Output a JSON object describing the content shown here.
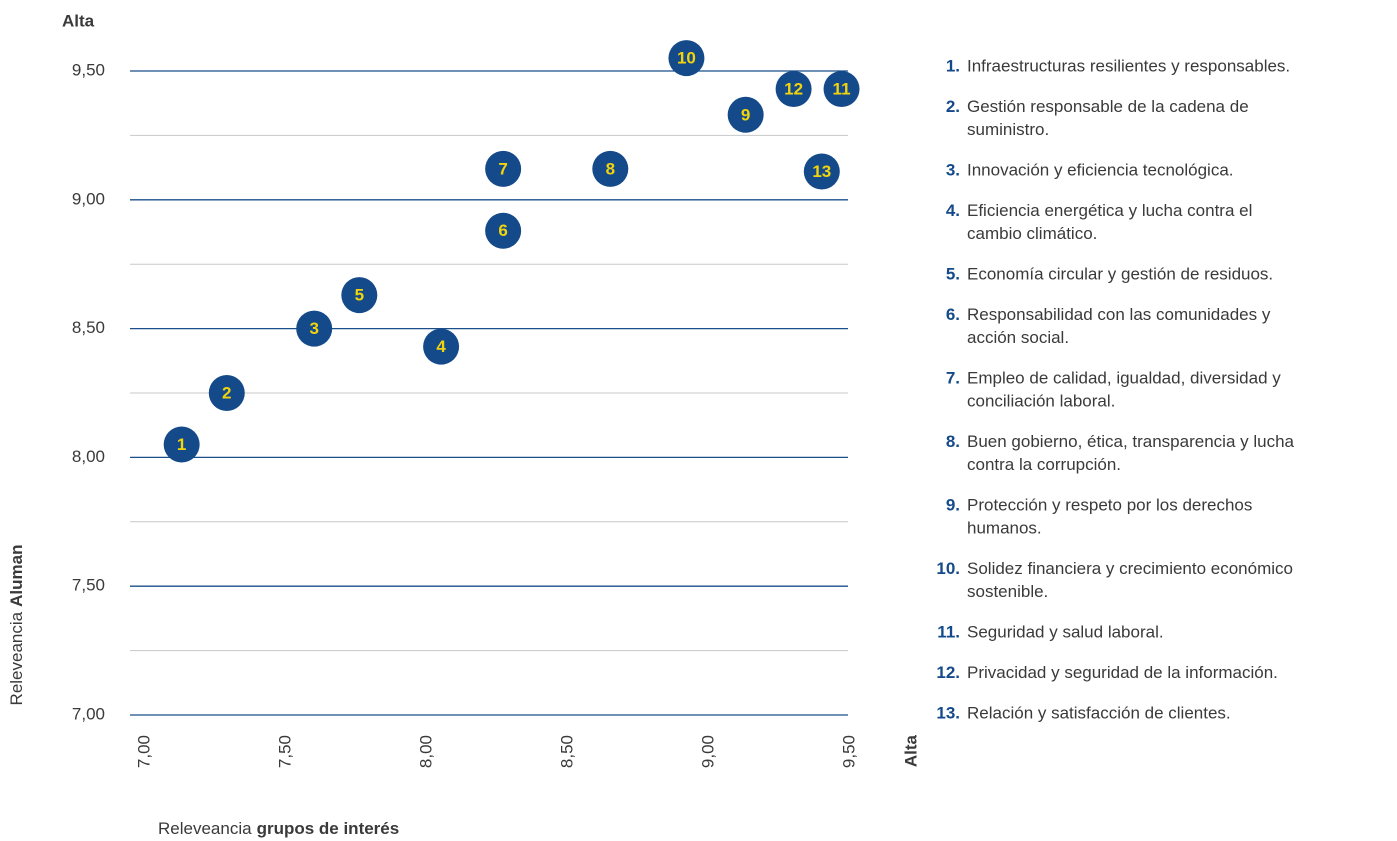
{
  "chart_data": {
    "type": "scatter",
    "y_top_label": "Alta",
    "x_end_label": "Alta",
    "y_label": {
      "text": "Releveancia",
      "bold": "Aluman"
    },
    "x_label": {
      "text": "Releveancia",
      "bold": "grupos de interés"
    },
    "xlim": [
      7.0,
      9.5
    ],
    "ylim": [
      7.0,
      9.5
    ],
    "xticks": [
      {
        "value": 7.0,
        "label": "7,00"
      },
      {
        "value": 7.5,
        "label": "7,50"
      },
      {
        "value": 8.0,
        "label": "8,00"
      },
      {
        "value": 8.5,
        "label": "8,50"
      },
      {
        "value": 9.0,
        "label": "9,00"
      },
      {
        "value": 9.5,
        "label": "9,50"
      }
    ],
    "yticks": [
      {
        "value": 7.0,
        "label": "7,00"
      },
      {
        "value": 7.5,
        "label": "7,50"
      },
      {
        "value": 8.0,
        "label": "8,00"
      },
      {
        "value": 8.5,
        "label": "8,50"
      },
      {
        "value": 9.0,
        "label": "9,00"
      },
      {
        "value": 9.5,
        "label": "9,50"
      }
    ],
    "yticks_minor": [
      7.25,
      7.75,
      8.25,
      8.75,
      9.25
    ],
    "grid": true,
    "grid_color": "#1a4f8b",
    "minor_grid_color": "#c8c8c8",
    "marker_color": "#154a8a",
    "marker_text_color": "#f2d40c",
    "points": [
      {
        "label": "1",
        "x": 7.13,
        "y": 8.05
      },
      {
        "label": "2",
        "x": 7.29,
        "y": 8.25
      },
      {
        "label": "3",
        "x": 7.6,
        "y": 8.5
      },
      {
        "label": "4",
        "x": 8.05,
        "y": 8.43
      },
      {
        "label": "5",
        "x": 7.76,
        "y": 8.63
      },
      {
        "label": "6",
        "x": 8.27,
        "y": 8.88
      },
      {
        "label": "7",
        "x": 8.27,
        "y": 9.12
      },
      {
        "label": "8",
        "x": 8.65,
        "y": 9.12
      },
      {
        "label": "9",
        "x": 9.13,
        "y": 9.33
      },
      {
        "label": "10",
        "x": 8.92,
        "y": 9.55
      },
      {
        "label": "11",
        "x": 9.47,
        "y": 9.43
      },
      {
        "label": "12",
        "x": 9.3,
        "y": 9.43
      },
      {
        "label": "13",
        "x": 9.4,
        "y": 9.11
      }
    ],
    "legend": [
      {
        "number": "1.",
        "lines": [
          "Infraestructuras resilientes y responsables."
        ]
      },
      {
        "number": "2.",
        "lines": [
          "Gestión responsable de la cadena de",
          "suministro."
        ]
      },
      {
        "number": "3.",
        "lines": [
          "Innovación y eficiencia tecnológica."
        ]
      },
      {
        "number": "4.",
        "lines": [
          "Eficiencia energética y lucha contra el",
          "cambio climático."
        ]
      },
      {
        "number": "5.",
        "lines": [
          "Economía circular y gestión de residuos."
        ]
      },
      {
        "number": "6.",
        "lines": [
          "Responsabilidad con las comunidades y",
          "acción social."
        ]
      },
      {
        "number": "7.",
        "lines": [
          "Empleo de calidad, igualdad, diversidad y",
          "conciliación laboral."
        ]
      },
      {
        "number": "8.",
        "lines": [
          "Buen gobierno, ética, transparencia y lucha",
          "contra la corrupción."
        ]
      },
      {
        "number": "9.",
        "lines": [
          "Protección y respeto por los derechos",
          "humanos."
        ]
      },
      {
        "number": "10.",
        "lines": [
          "Solidez financiera y crecimiento económico",
          "sostenible."
        ]
      },
      {
        "number": "11.",
        "lines": [
          "Seguridad y salud laboral."
        ]
      },
      {
        "number": "12.",
        "lines": [
          "Privacidad y seguridad de la información."
        ]
      },
      {
        "number": "13.",
        "lines": [
          "Relación y satisfacción de clientes."
        ]
      }
    ]
  }
}
